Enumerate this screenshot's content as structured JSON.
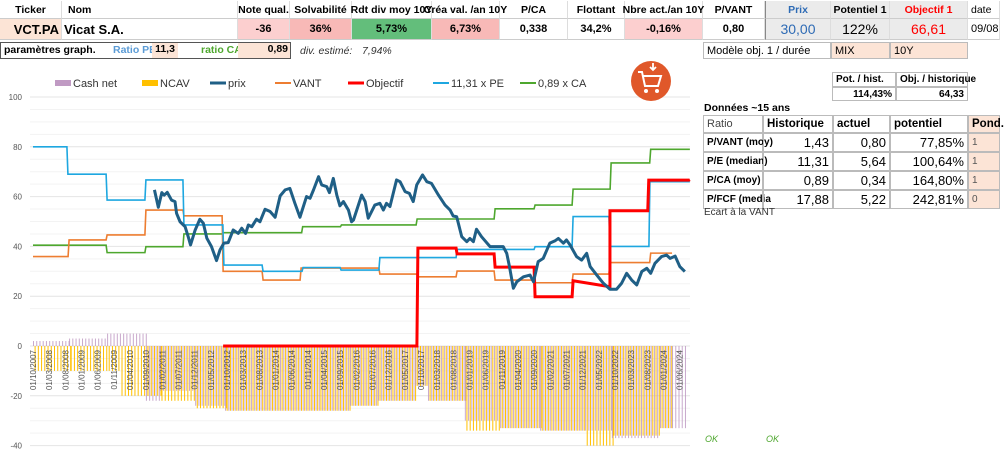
{
  "header": {
    "columns": [
      "Ticker",
      "Nom",
      "Note qual.",
      "Solvabilité",
      "Rdt div moy 10Y",
      "Créa val. /an 10Y",
      "P/CA",
      "Flottant",
      "Nbre act./an 10Y",
      "P/VANT",
      "Prix",
      "Potentiel 1",
      "Objectif 1",
      "date"
    ],
    "values": [
      "VCT.PA",
      "Vicat S.A.",
      "-36",
      "36%",
      "5,73%",
      "6,73%",
      "0,338",
      "34,2%",
      "-0,16%",
      "0,80",
      "30,00",
      "122%",
      "66,61",
      "09/08"
    ]
  },
  "params": {
    "label": "paramètres graph.",
    "ratio_pe_label": "Ratio PE",
    "ratio_pe": "11,3",
    "ratio_ca_label": "ratio CA",
    "ratio_ca": "0,89",
    "div_label": "div. estimé:",
    "div_value": "7,94%"
  },
  "model": {
    "label": "Modèle obj. 1 / durée",
    "type": "MIX",
    "duration": "10Y"
  },
  "pot": {
    "h1": "Pot. / hist.",
    "h2": "Obj. / historique",
    "v1": "114,43%",
    "v2": "64,33"
  },
  "ratios": {
    "title": "Données ~15 ans",
    "headers": [
      "Ratio",
      "Historique",
      "actuel",
      "potentiel",
      "Pond."
    ],
    "rows": [
      [
        "P/VANT (moy)",
        "1,43",
        "0,80",
        "77,85%",
        "1"
      ],
      [
        "P/E (median)",
        "11,31",
        "5,64",
        "100,64%",
        "1"
      ],
      [
        "P/CA (moy)",
        "0,89",
        "0,34",
        "164,80%",
        "1"
      ],
      [
        "P/FCF (media",
        "17,88",
        "5,22",
        "242,81%",
        "0"
      ]
    ],
    "footer": "Ecart à la VANT"
  },
  "ok": [
    "OK",
    "OK"
  ],
  "cart_icon": "shopping-cart-download-icon",
  "chart_data": {
    "type": "line",
    "ylim": [
      -40,
      100
    ],
    "yticks": [
      100,
      80,
      60,
      40,
      20,
      0,
      -20,
      -40
    ],
    "xlim": [
      2007.75,
      2024.75
    ],
    "xticks": [
      "01/10/2007",
      "01/03/2008",
      "01/08/2008",
      "01/01/2009",
      "01/06/2009",
      "01/11/2009",
      "01/04/2010",
      "01/09/2010",
      "01/02/2011",
      "01/07/2011",
      "01/12/2011",
      "01/05/2012",
      "01/10/2012",
      "01/03/2013",
      "01/08/2013",
      "01/01/2014",
      "01/06/2014",
      "01/11/2014",
      "01/04/2015",
      "01/09/2015",
      "01/02/2016",
      "01/07/2016",
      "01/12/2016",
      "01/05/2017",
      "01/10/2017",
      "01/03/2018",
      "01/08/2018",
      "01/01/2019",
      "01/06/2019",
      "01/11/2019",
      "01/04/2020",
      "01/09/2020",
      "01/02/2021",
      "01/07/2021",
      "01/12/2021",
      "01/05/2022",
      "01/10/2022",
      "01/03/2023",
      "01/08/2023",
      "01/01/2024",
      "01/06/2024"
    ],
    "legend": [
      {
        "name": "Cash net",
        "color": "#c09ac3",
        "kind": "bar"
      },
      {
        "name": "NCAV",
        "color": "#ffc000",
        "kind": "bar"
      },
      {
        "name": "prix",
        "color": "#1f5f86",
        "kind": "line"
      },
      {
        "name": "VANT",
        "color": "#ed7d31",
        "kind": "line"
      },
      {
        "name": "Objectif",
        "color": "#ff0000",
        "kind": "line"
      },
      {
        "name": "11,31 x PE",
        "color": "#1ea7e0",
        "kind": "line"
      },
      {
        "name": "0,89 x CA",
        "color": "#4ea72e",
        "kind": "line"
      }
    ],
    "bars_segments": [
      [
        2007.75,
        2008.68,
        2,
        -10
      ],
      [
        2008.68,
        2009.66,
        3,
        -10
      ],
      [
        2009.66,
        2009.99,
        5,
        -10
      ],
      [
        2009.99,
        2010.66,
        5,
        -20
      ],
      [
        2010.66,
        2011.02,
        -22,
        -20
      ],
      [
        2011.02,
        2011.93,
        -18,
        -22
      ],
      [
        2011.93,
        2012.7,
        -24,
        -25
      ],
      [
        2012.7,
        2015.92,
        -26,
        -26
      ],
      [
        2015.92,
        2016.64,
        -24,
        -24
      ],
      [
        2016.64,
        2017.6,
        -22,
        -22
      ],
      [
        2017.6,
        2017.93,
        -16,
        -16
      ],
      [
        2017.93,
        2018.88,
        -22,
        -22
      ],
      [
        2018.88,
        2019.79,
        -30,
        -34
      ],
      [
        2019.79,
        2020.82,
        -33,
        -33
      ],
      [
        2020.82,
        2021.98,
        -34,
        -34
      ],
      [
        2021.98,
        2022.67,
        -34,
        -40
      ],
      [
        2022.67,
        2023.91,
        -37,
        -36
      ],
      [
        2023.91,
        2024.22,
        -33,
        -33
      ],
      [
        2024.22,
        2024.6,
        -33,
        0
      ]
    ],
    "steps": {
      "11,31 x PE": [
        [
          2007.75,
          80
        ],
        [
          2008.65,
          69
        ],
        [
          2009.66,
          58.6
        ],
        [
          2010.66,
          66.7
        ],
        [
          2011.64,
          48.6
        ],
        [
          2012.67,
          32.5
        ],
        [
          2013.68,
          30
        ],
        [
          2014.71,
          31.5
        ],
        [
          2015.69,
          30.5
        ],
        [
          2016.69,
          35.5
        ],
        [
          2018.68,
          38.8
        ],
        [
          2020.69,
          39.9
        ],
        [
          2021.67,
          52
        ],
        [
          2022.62,
          40
        ],
        [
          2023.65,
          66
        ],
        [
          2024.68,
          66
        ]
      ],
      "VANT": [
        [
          2007.75,
          35.9
        ],
        [
          2008.68,
          42.6
        ],
        [
          2009.66,
          44.6
        ],
        [
          2010.66,
          54.6
        ],
        [
          2011.64,
          52.3
        ],
        [
          2012.65,
          30
        ],
        [
          2013.68,
          26.5
        ],
        [
          2014.66,
          31.3
        ],
        [
          2016.69,
          28.9
        ],
        [
          2017.67,
          27.8
        ],
        [
          2018.68,
          30.1
        ],
        [
          2019.66,
          26.5
        ],
        [
          2020.69,
          25.4
        ],
        [
          2021.67,
          28.9
        ],
        [
          2022.62,
          33.5
        ],
        [
          2023.67,
          37.3
        ],
        [
          2024.22,
          37.3
        ]
      ],
      "0,89 x CA": [
        [
          2007.75,
          40.5
        ],
        [
          2009.66,
          37.5
        ],
        [
          2010.66,
          39.9
        ],
        [
          2011.64,
          45
        ],
        [
          2012.65,
          45.5
        ],
        [
          2014.7,
          47.9
        ],
        [
          2015.7,
          48.6
        ],
        [
          2017.65,
          51
        ],
        [
          2019.66,
          55.1
        ],
        [
          2020.69,
          56.6
        ],
        [
          2021.67,
          63
        ],
        [
          2022.65,
          73.5
        ],
        [
          2023.67,
          79
        ],
        [
          2024.68,
          79
        ]
      ],
      "Objectif": [
        [
          2012.65,
          0
        ],
        [
          2017.67,
          39.3
        ],
        [
          2018.68,
          37
        ],
        [
          2019.66,
          31.7
        ],
        [
          2020.69,
          19.8
        ],
        [
          2021.67,
          26.2
        ],
        [
          2022.62,
          54.3
        ],
        [
          2023.62,
          66.6
        ],
        [
          2024.68,
          66.8
        ]
      ]
    },
    "objectif_slope_end": [
      2022.62,
      23.8
    ],
    "prix": [
      [
        2010.88,
        62.7
      ],
      [
        2010.98,
        55.7
      ],
      [
        2011.07,
        61.6
      ],
      [
        2011.13,
        60.6
      ],
      [
        2011.21,
        61.7
      ],
      [
        2011.32,
        58.6
      ],
      [
        2011.41,
        58
      ],
      [
        2011.45,
        53.3
      ],
      [
        2011.54,
        49.9
      ],
      [
        2011.67,
        47.9
      ],
      [
        2011.75,
        43.9
      ],
      [
        2011.81,
        40.6
      ],
      [
        2011.93,
        46.6
      ],
      [
        2012.05,
        50.9
      ],
      [
        2012.14,
        49.3
      ],
      [
        2012.23,
        43.3
      ],
      [
        2012.35,
        39.9
      ],
      [
        2012.48,
        34.3
      ],
      [
        2012.57,
        38.6
      ],
      [
        2012.67,
        41.3
      ],
      [
        2012.78,
        41.5
      ],
      [
        2012.91,
        46.6
      ],
      [
        2013.04,
        45.2
      ],
      [
        2013.13,
        47.3
      ],
      [
        2013.23,
        45.2
      ],
      [
        2013.3,
        48.6
      ],
      [
        2013.39,
        47.9
      ],
      [
        2013.51,
        50.9
      ],
      [
        2013.6,
        49.9
      ],
      [
        2013.73,
        54.9
      ],
      [
        2013.86,
        54
      ],
      [
        2013.99,
        51.7
      ],
      [
        2014.12,
        60.3
      ],
      [
        2014.25,
        62.7
      ],
      [
        2014.37,
        63.3
      ],
      [
        2014.5,
        57.3
      ],
      [
        2014.63,
        51.7
      ],
      [
        2014.8,
        60
      ],
      [
        2014.89,
        59.3
      ],
      [
        2014.98,
        62.7
      ],
      [
        2015.11,
        68
      ],
      [
        2015.19,
        64.7
      ],
      [
        2015.32,
        64
      ],
      [
        2015.39,
        61.6
      ],
      [
        2015.49,
        67.3
      ],
      [
        2015.58,
        60.6
      ],
      [
        2015.66,
        56.3
      ],
      [
        2015.75,
        58
      ],
      [
        2015.88,
        54.6
      ],
      [
        2015.96,
        49.9
      ],
      [
        2016.01,
        50.6
      ],
      [
        2016.22,
        60.6
      ],
      [
        2016.31,
        58
      ],
      [
        2016.39,
        51.3
      ],
      [
        2016.56,
        56.6
      ],
      [
        2016.69,
        57.3
      ],
      [
        2016.78,
        54.6
      ],
      [
        2016.86,
        57.3
      ],
      [
        2016.95,
        56
      ],
      [
        2017.12,
        66.7
      ],
      [
        2017.21,
        66
      ],
      [
        2017.34,
        62
      ],
      [
        2017.45,
        61.3
      ],
      [
        2017.55,
        58
      ],
      [
        2017.64,
        64.7
      ],
      [
        2017.79,
        68.7
      ],
      [
        2017.9,
        66
      ],
      [
        2018.02,
        65.3
      ],
      [
        2018.2,
        60.6
      ],
      [
        2018.37,
        56.6
      ],
      [
        2018.5,
        54.6
      ],
      [
        2018.58,
        52.2
      ],
      [
        2018.67,
        51.9
      ],
      [
        2018.8,
        43.9
      ],
      [
        2018.93,
        41.9
      ],
      [
        2019.01,
        43.2
      ],
      [
        2019.1,
        41.9
      ],
      [
        2019.18,
        46.9
      ],
      [
        2019.31,
        43.9
      ],
      [
        2019.53,
        39.9
      ],
      [
        2019.7,
        39.9
      ],
      [
        2019.87,
        39.9
      ],
      [
        2019.96,
        37.2
      ],
      [
        2020.03,
        31.9
      ],
      [
        2020.13,
        23.2
      ],
      [
        2020.22,
        25.8
      ],
      [
        2020.39,
        27.8
      ],
      [
        2020.56,
        28.5
      ],
      [
        2020.65,
        25.8
      ],
      [
        2020.77,
        33.9
      ],
      [
        2020.9,
        35.2
      ],
      [
        2021.07,
        41.3
      ],
      [
        2021.2,
        42.2
      ],
      [
        2021.29,
        43.2
      ],
      [
        2021.42,
        41.3
      ],
      [
        2021.5,
        42.6
      ],
      [
        2021.59,
        40.6
      ],
      [
        2021.76,
        35.9
      ],
      [
        2021.89,
        34.5
      ],
      [
        2022.02,
        37.2
      ],
      [
        2022.11,
        31.9
      ],
      [
        2022.28,
        28.5
      ],
      [
        2022.45,
        25.2
      ],
      [
        2022.62,
        22.8
      ],
      [
        2022.79,
        22.8
      ],
      [
        2022.92,
        25.2
      ],
      [
        2023.05,
        29.2
      ],
      [
        2023.18,
        26.5
      ],
      [
        2023.31,
        24.5
      ],
      [
        2023.44,
        29.9
      ],
      [
        2023.57,
        31.2
      ],
      [
        2023.67,
        29.2
      ],
      [
        2023.78,
        33.2
      ],
      [
        2023.95,
        35.9
      ],
      [
        2024.08,
        36.5
      ],
      [
        2024.17,
        35.2
      ],
      [
        2024.3,
        36.1
      ],
      [
        2024.42,
        31.9
      ],
      [
        2024.55,
        29.9
      ]
    ]
  }
}
